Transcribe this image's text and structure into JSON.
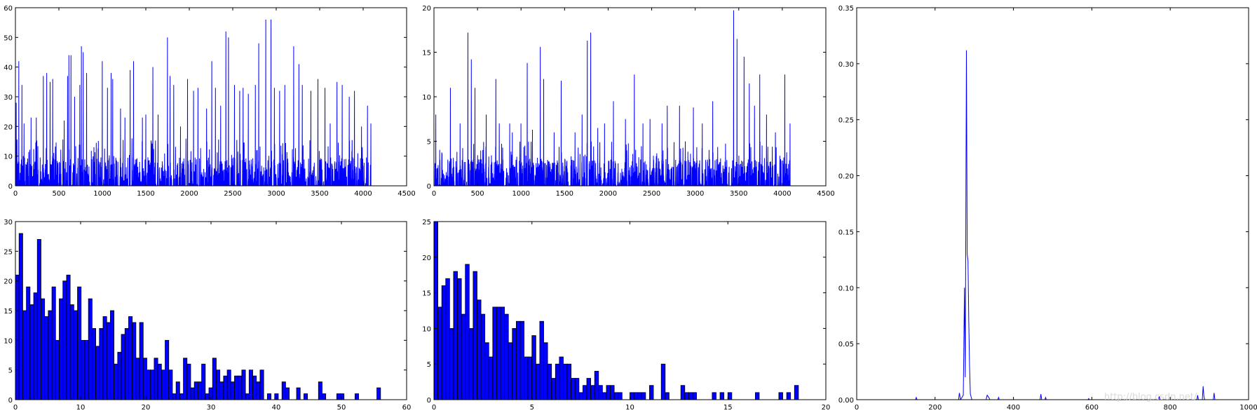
{
  "figure": {
    "watermark": "http://blog.csdn.net/"
  },
  "chart_data": [
    {
      "id": "top-left",
      "type": "line",
      "title": "",
      "xlabel": "",
      "ylabel": "",
      "xlim": [
        0,
        4500
      ],
      "ylim": [
        0,
        60
      ],
      "xticks": [
        0,
        500,
        1000,
        1500,
        2000,
        2500,
        3000,
        3500,
        4000,
        4500
      ],
      "yticks": [
        0,
        10,
        20,
        30,
        40,
        50,
        60
      ],
      "grid": false,
      "color": "#0000ff",
      "n_points": 4096,
      "series": [
        {
          "x_step": 1,
          "peaks": [
            [
              10,
              28
            ],
            [
              40,
              42
            ],
            [
              75,
              34
            ],
            [
              100,
              21
            ],
            [
              180,
              23
            ],
            [
              240,
              23
            ],
            [
              320,
              37
            ],
            [
              360,
              38
            ],
            [
              400,
              35
            ],
            [
              430,
              36
            ],
            [
              560,
              22
            ],
            [
              600,
              37
            ],
            [
              615,
              44
            ],
            [
              640,
              44
            ],
            [
              680,
              30
            ],
            [
              740,
              34
            ],
            [
              760,
              47
            ],
            [
              780,
              45
            ],
            [
              820,
              38
            ],
            [
              960,
              8
            ],
            [
              1000,
              42
            ],
            [
              1060,
              33
            ],
            [
              1100,
              38
            ],
            [
              1120,
              36
            ],
            [
              1210,
              26
            ],
            [
              1260,
              23
            ],
            [
              1320,
              39
            ],
            [
              1360,
              42
            ],
            [
              1460,
              23
            ],
            [
              1500,
              24
            ],
            [
              1580,
              40
            ],
            [
              1640,
              24
            ],
            [
              1750,
              50
            ],
            [
              1780,
              37
            ],
            [
              1820,
              34
            ],
            [
              1900,
              20
            ],
            [
              1980,
              36
            ],
            [
              2050,
              32
            ],
            [
              2100,
              33
            ],
            [
              2200,
              26
            ],
            [
              2260,
              42
            ],
            [
              2300,
              33
            ],
            [
              2360,
              27
            ],
            [
              2420,
              52
            ],
            [
              2450,
              50
            ],
            [
              2520,
              34
            ],
            [
              2580,
              32
            ],
            [
              2620,
              33
            ],
            [
              2680,
              31
            ],
            [
              2760,
              34
            ],
            [
              2800,
              48
            ],
            [
              2880,
              56
            ],
            [
              2940,
              56
            ],
            [
              2980,
              33
            ],
            [
              3040,
              32
            ],
            [
              3100,
              34
            ],
            [
              3200,
              47
            ],
            [
              3260,
              41
            ],
            [
              3300,
              34
            ],
            [
              3400,
              32
            ],
            [
              3480,
              36
            ],
            [
              3560,
              33
            ],
            [
              3620,
              21
            ],
            [
              3700,
              35
            ],
            [
              3760,
              34
            ],
            [
              3840,
              30
            ],
            [
              3900,
              32
            ],
            [
              3980,
              20
            ],
            [
              4050,
              27
            ],
            [
              4090,
              21
            ]
          ],
          "base_max": 16,
          "seed": 7
        }
      ]
    },
    {
      "id": "top-middle",
      "type": "line",
      "title": "",
      "xlabel": "",
      "ylabel": "",
      "xlim": [
        0,
        4500
      ],
      "ylim": [
        0,
        20
      ],
      "xticks": [
        0,
        500,
        1000,
        1500,
        2000,
        2500,
        3000,
        3500,
        4000,
        4500
      ],
      "yticks": [
        0,
        5,
        10,
        15,
        20
      ],
      "grid": false,
      "color": "#0000ff",
      "n_points": 4096,
      "series": [
        {
          "x_step": 1,
          "peaks": [
            [
              20,
              8
            ],
            [
              190,
              11
            ],
            [
              300,
              7
            ],
            [
              390,
              17.2
            ],
            [
              430,
              14.2
            ],
            [
              470,
              11
            ],
            [
              600,
              8
            ],
            [
              710,
              12
            ],
            [
              750,
              7
            ],
            [
              870,
              7
            ],
            [
              900,
              6
            ],
            [
              1000,
              7
            ],
            [
              1070,
              13.8
            ],
            [
              1130,
              6.3
            ],
            [
              1220,
              15.6
            ],
            [
              1260,
              12
            ],
            [
              1380,
              6
            ],
            [
              1460,
              11.8
            ],
            [
              1620,
              6
            ],
            [
              1700,
              8
            ],
            [
              1760,
              16.3
            ],
            [
              1800,
              17.2
            ],
            [
              1880,
              6.5
            ],
            [
              1960,
              7
            ],
            [
              2060,
              9.5
            ],
            [
              2200,
              7.5
            ],
            [
              2300,
              12.5
            ],
            [
              2400,
              7
            ],
            [
              2480,
              7.5
            ],
            [
              2620,
              7
            ],
            [
              2680,
              9
            ],
            [
              2820,
              9
            ],
            [
              2980,
              8.8
            ],
            [
              3080,
              7
            ],
            [
              3200,
              9.5
            ],
            [
              3440,
              19.7
            ],
            [
              3480,
              16.5
            ],
            [
              3560,
              14.5
            ],
            [
              3620,
              11.5
            ],
            [
              3680,
              9
            ],
            [
              3740,
              12.5
            ],
            [
              3820,
              8
            ],
            [
              3920,
              6
            ],
            [
              4030,
              12.5
            ],
            [
              4090,
              7
            ]
          ],
          "base_max": 5,
          "seed": 11
        }
      ]
    },
    {
      "id": "right-tall",
      "type": "line",
      "title": "",
      "xlabel": "",
      "ylabel": "",
      "xlim": [
        0,
        1000
      ],
      "ylim": [
        0,
        0.35
      ],
      "xticks": [
        0,
        200,
        400,
        600,
        800,
        1000
      ],
      "yticks": [
        0.0,
        0.05,
        0.1,
        0.15,
        0.2,
        0.25,
        0.3,
        0.35
      ],
      "ytick_labels": [
        "0.00",
        "0.05",
        "0.10",
        "0.15",
        "0.20",
        "0.25",
        "0.30",
        "0.35"
      ],
      "grid": false,
      "color": "#0000ff",
      "series": [
        {
          "points": [
            [
              0,
              0
            ],
            [
              150,
              0
            ],
            [
              152,
              0.002
            ],
            [
              154,
              0
            ],
            [
              260,
              0
            ],
            [
              262,
              0.006
            ],
            [
              265,
              0
            ],
            [
              272,
              0.004
            ],
            [
              275,
              0.1
            ],
            [
              277,
              0.02
            ],
            [
              280,
              0.312
            ],
            [
              282,
              0.13
            ],
            [
              284,
              0.124
            ],
            [
              286,
              0.07
            ],
            [
              288,
              0.03
            ],
            [
              290,
              0.005
            ],
            [
              294,
              0
            ],
            [
              330,
              0
            ],
            [
              333,
              0.004
            ],
            [
              337,
              0.002
            ],
            [
              340,
              0
            ],
            [
              360,
              0
            ],
            [
              362,
              0.002
            ],
            [
              364,
              0
            ],
            [
              468,
              0
            ],
            [
              470,
              0.005
            ],
            [
              472,
              0
            ],
            [
              480,
              0
            ],
            [
              482,
              0.002
            ],
            [
              484,
              0
            ],
            [
              590,
              0
            ],
            [
              592,
              0.001
            ],
            [
              594,
              0
            ],
            [
              770,
              0
            ],
            [
              772,
              0.003
            ],
            [
              774,
              0
            ],
            [
              868,
              0
            ],
            [
              870,
              0.004
            ],
            [
              872,
              0
            ],
            [
              882,
              0
            ],
            [
              884,
              0.012
            ],
            [
              886,
              0.003
            ],
            [
              888,
              0
            ],
            [
              910,
              0
            ],
            [
              912,
              0.006
            ],
            [
              914,
              0
            ],
            [
              1000,
              0
            ]
          ]
        }
      ]
    },
    {
      "id": "bottom-left",
      "type": "bar",
      "title": "",
      "xlabel": "",
      "ylabel": "",
      "xlim": [
        0,
        60
      ],
      "ylim": [
        0,
        30
      ],
      "xticks": [
        0,
        10,
        20,
        30,
        40,
        50,
        60
      ],
      "yticks": [
        0,
        5,
        10,
        15,
        20,
        25,
        30
      ],
      "grid": false,
      "color": "#0000ff",
      "bin_start": 0,
      "bin_width": 0.56,
      "values": [
        21,
        28,
        15,
        19,
        16,
        18,
        27,
        17,
        14,
        15,
        19,
        10,
        17,
        20,
        21,
        16,
        15,
        19,
        10,
        10,
        17,
        12,
        9,
        12,
        14,
        13,
        15,
        6,
        8,
        11,
        12,
        14,
        13,
        7,
        13,
        7,
        5,
        5,
        7,
        6,
        5,
        10,
        5,
        1,
        3,
        1,
        7,
        6,
        2,
        3,
        3,
        6,
        1,
        2,
        7,
        5,
        3,
        4,
        5,
        3,
        4,
        4,
        5,
        1,
        5,
        4,
        3,
        5,
        0,
        1,
        0,
        1,
        0,
        3,
        2,
        0,
        0,
        2,
        0,
        1,
        0,
        0,
        0,
        3,
        1,
        0,
        0,
        0,
        1,
        1,
        0,
        0,
        0,
        1,
        0,
        0,
        0,
        0,
        0,
        2
      ]
    },
    {
      "id": "bottom-middle",
      "type": "bar",
      "title": "",
      "xlabel": "",
      "ylabel": "",
      "xlim": [
        0,
        20
      ],
      "ylim": [
        0,
        25
      ],
      "xticks": [
        0,
        5,
        10,
        15,
        20
      ],
      "yticks": [
        0,
        5,
        10,
        15,
        20,
        25
      ],
      "grid": false,
      "color": "#0000ff",
      "bin_start": 0,
      "bin_width": 0.2,
      "values": [
        25,
        13,
        16,
        17,
        10,
        18,
        17,
        12,
        19,
        10,
        18,
        14,
        12,
        8,
        6,
        13,
        13,
        13,
        12,
        8,
        10,
        11,
        11,
        6,
        6,
        9,
        5,
        11,
        8,
        5,
        3,
        5,
        6,
        5,
        5,
        3,
        3,
        1,
        2,
        3,
        2,
        4,
        2,
        1,
        2,
        2,
        1,
        1,
        0,
        0,
        1,
        1,
        1,
        1,
        0,
        2,
        0,
        0,
        5,
        1,
        0,
        0,
        0,
        2,
        1,
        1,
        1,
        0,
        0,
        0,
        0,
        1,
        0,
        1,
        0,
        1,
        0,
        0,
        0,
        0,
        0,
        0,
        1,
        0,
        0,
        0,
        0,
        0,
        1,
        0,
        1,
        0,
        2,
        0,
        0,
        0,
        0,
        0,
        0,
        0
      ]
    }
  ]
}
